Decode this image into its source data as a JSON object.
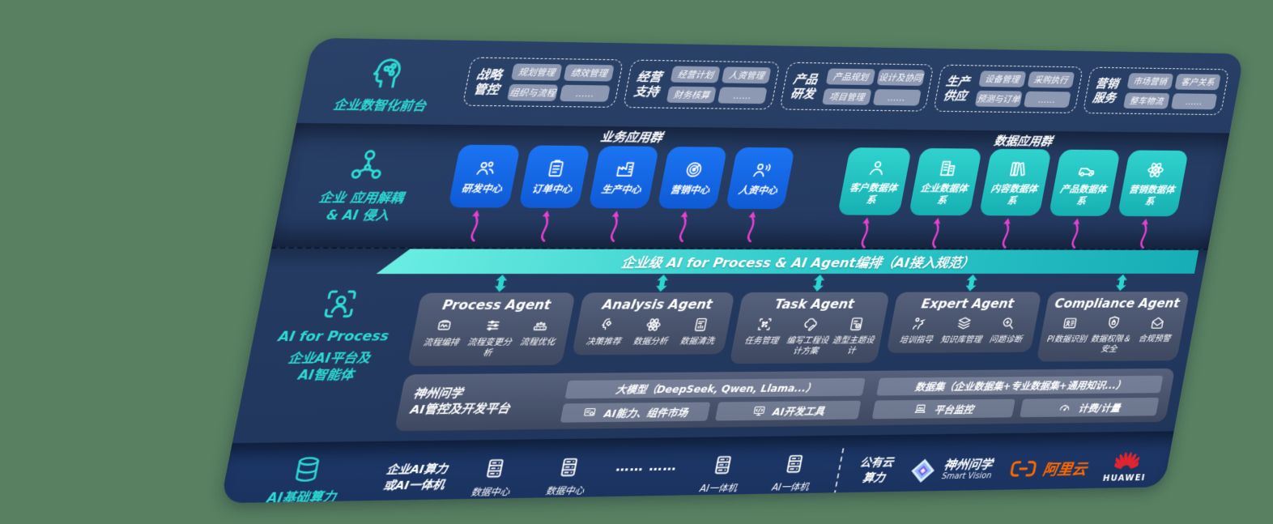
{
  "colors": {
    "background_green": "#588061",
    "panel_navy": "#243a61",
    "accent_teal": "#2ddbd4",
    "tile_blue": "#1668e4",
    "tile_teal": "#22c2c0",
    "card_slate": "#4d576f",
    "chip_gray": "#96a0b8",
    "arrow_pink": "#e93fd2",
    "aliyun_orange": "#ff6a00",
    "huawei_red": "#e02531"
  },
  "front_stage": {
    "label": "企业数智化前台",
    "icon": "brain-circuit-icon",
    "groups": [
      {
        "label": "战略管控",
        "chips": [
          "规划管理",
          "绩效管理",
          "组织与流程",
          "……"
        ]
      },
      {
        "label": "经营支持",
        "chips": [
          "经营计划",
          "人资管理",
          "财务核算",
          "……"
        ]
      },
      {
        "label": "产品研发",
        "chips": [
          "产品规划",
          "设计及协同",
          "项目管理",
          "……"
        ]
      },
      {
        "label": "生产供应",
        "chips": [
          "设备管理",
          "采购执行",
          "预测与订单",
          "……"
        ]
      },
      {
        "label": "营销服务",
        "chips": [
          "市场营销",
          "客户关系",
          "整车物流",
          "……"
        ]
      }
    ]
  },
  "decoupling": {
    "label": "企业 应用解耦\n& AI 侵入",
    "icon": "molecule-icon",
    "business_group": {
      "title": "业务应用群",
      "tiles": [
        {
          "label": "研发中心",
          "icon": "team-icon"
        },
        {
          "label": "订单中心",
          "icon": "clipboard-icon"
        },
        {
          "label": "生产中心",
          "icon": "factory-icon"
        },
        {
          "label": "营销中心",
          "icon": "target-icon"
        },
        {
          "label": "人资中心",
          "icon": "person-wave-icon"
        }
      ]
    },
    "data_group": {
      "title": "数据应用群",
      "tiles": [
        {
          "label": "客户数据体系",
          "icon": "person-icon"
        },
        {
          "label": "企业数据体系",
          "icon": "building-icon"
        },
        {
          "label": "内容数据体系",
          "icon": "books-icon"
        },
        {
          "label": "产品数据体系",
          "icon": "car-icon"
        },
        {
          "label": "营销数据体系",
          "icon": "atom-icon"
        }
      ]
    }
  },
  "orchestration": {
    "label": "企业级 AI for Process & AI Agent编排（AI接入规范）"
  },
  "ai_platform": {
    "label_top": "AI for Process",
    "label_bottom": "企业AI平台及\nAI智能体",
    "icon": "scan-person-icon",
    "agents": [
      {
        "title": "Process Agent",
        "items": [
          {
            "label": "流程编排",
            "icon": "flow-monitor-icon"
          },
          {
            "label": "流程变更分析",
            "icon": "sliders-icon"
          },
          {
            "label": "流程优化",
            "icon": "conveyor-icon"
          }
        ]
      },
      {
        "title": "Analysis Agent",
        "items": [
          {
            "label": "决策推荐",
            "icon": "head-gear-icon"
          },
          {
            "label": "数据分析",
            "icon": "atom-icon"
          },
          {
            "label": "数据清洗",
            "icon": "doc-data-icon"
          }
        ]
      },
      {
        "title": "Task Agent",
        "items": [
          {
            "label": "任务管理",
            "icon": "task-grid-icon"
          },
          {
            "label": "编写工程设计方案",
            "icon": "cloud-edit-icon"
          },
          {
            "label": "造型主题设计",
            "icon": "checklist-card-icon"
          }
        ]
      },
      {
        "title": "Expert Agent",
        "items": [
          {
            "label": "培训指导",
            "icon": "training-icon"
          },
          {
            "label": "知识库管理",
            "icon": "layers-icon"
          },
          {
            "label": "问题诊断",
            "icon": "diagnosis-icon"
          }
        ]
      },
      {
        "title": "Compliance Agent",
        "items": [
          {
            "label": "PI数据识别",
            "icon": "id-card-icon"
          },
          {
            "label": "数据权限＆\n安全",
            "icon": "data-lock-icon"
          },
          {
            "label": "合规预警",
            "icon": "alert-mail-icon"
          }
        ]
      }
    ],
    "dev_platform": {
      "label": "神州问学\nAI管控及开发平台",
      "model_bar": "大模型（DeepSeek, Qwen, Llama...）",
      "dataset_bar": "数据集（企业数据集+专业数据集+通用知识...）",
      "buttons": [
        {
          "label": "AI能力、组件市场",
          "icon": "component-market-icon"
        },
        {
          "label": "AI开发工具",
          "icon": "dev-tools-icon"
        },
        {
          "label": "平台监控",
          "icon": "monitor-icon"
        },
        {
          "label": "计费/计量",
          "icon": "meter-icon"
        }
      ]
    }
  },
  "compute": {
    "label": "AI基础算力",
    "icon": "database-icon",
    "edge_label": "企业AI算力\n或AI一体机",
    "nodes": [
      {
        "label": "数据中心",
        "icon": "server-icon"
      },
      {
        "label": "数据中心",
        "icon": "server-icon"
      },
      {
        "label": "…… ……",
        "icon": null
      },
      {
        "label": "AI一体机",
        "icon": "server-icon"
      },
      {
        "label": "AI一体机",
        "icon": "server-icon"
      }
    ],
    "public_cloud_label": "公有云\n算力",
    "vendors": [
      {
        "name": "神州问学",
        "sub": "Smart Vision",
        "icon": "smartvision-logo"
      },
      {
        "name": "阿里云",
        "icon": "aliyun-logo"
      },
      {
        "name": "HUAWEI",
        "icon": "huawei-logo"
      }
    ]
  }
}
